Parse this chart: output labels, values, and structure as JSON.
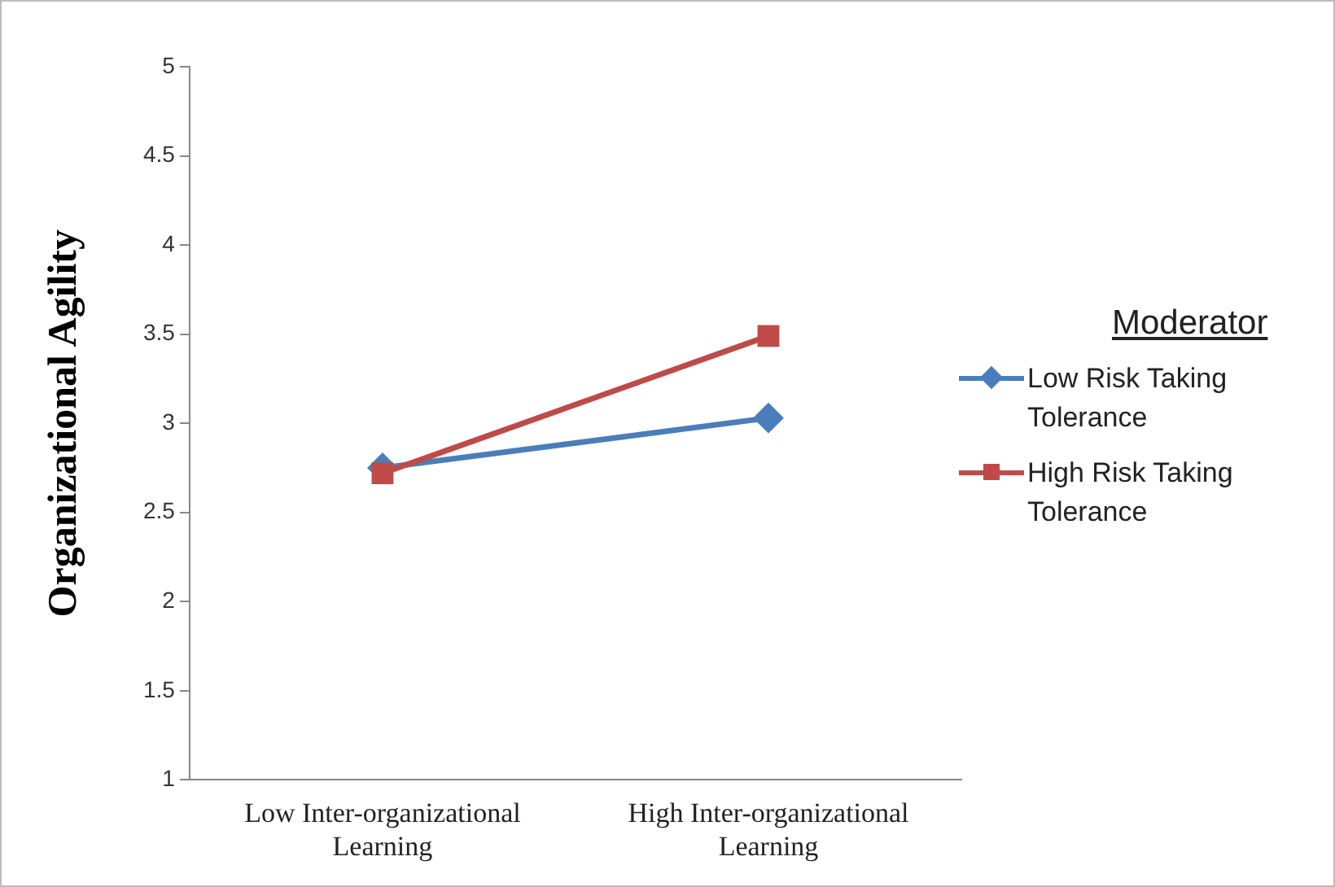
{
  "chart_data": {
    "type": "line",
    "ylabel": "Organizational Agility",
    "legend_title": "Moderator",
    "legend": "right",
    "grid": false,
    "categories": [
      "Low Inter-organizational Learning",
      "High Inter-organizational Learning"
    ],
    "ylim": [
      1,
      5
    ],
    "yticks": [
      1,
      1.5,
      2,
      2.5,
      3,
      3.5,
      4,
      4.5,
      5
    ],
    "series": [
      {
        "name": "Low Risk Taking Tolerance",
        "color": "#4a7ebb",
        "marker": "diamond",
        "values": [
          2.75,
          3.03
        ]
      },
      {
        "name": "High Risk Taking Tolerance",
        "color": "#be4b48",
        "marker": "square",
        "values": [
          2.72,
          3.49
        ]
      }
    ]
  }
}
